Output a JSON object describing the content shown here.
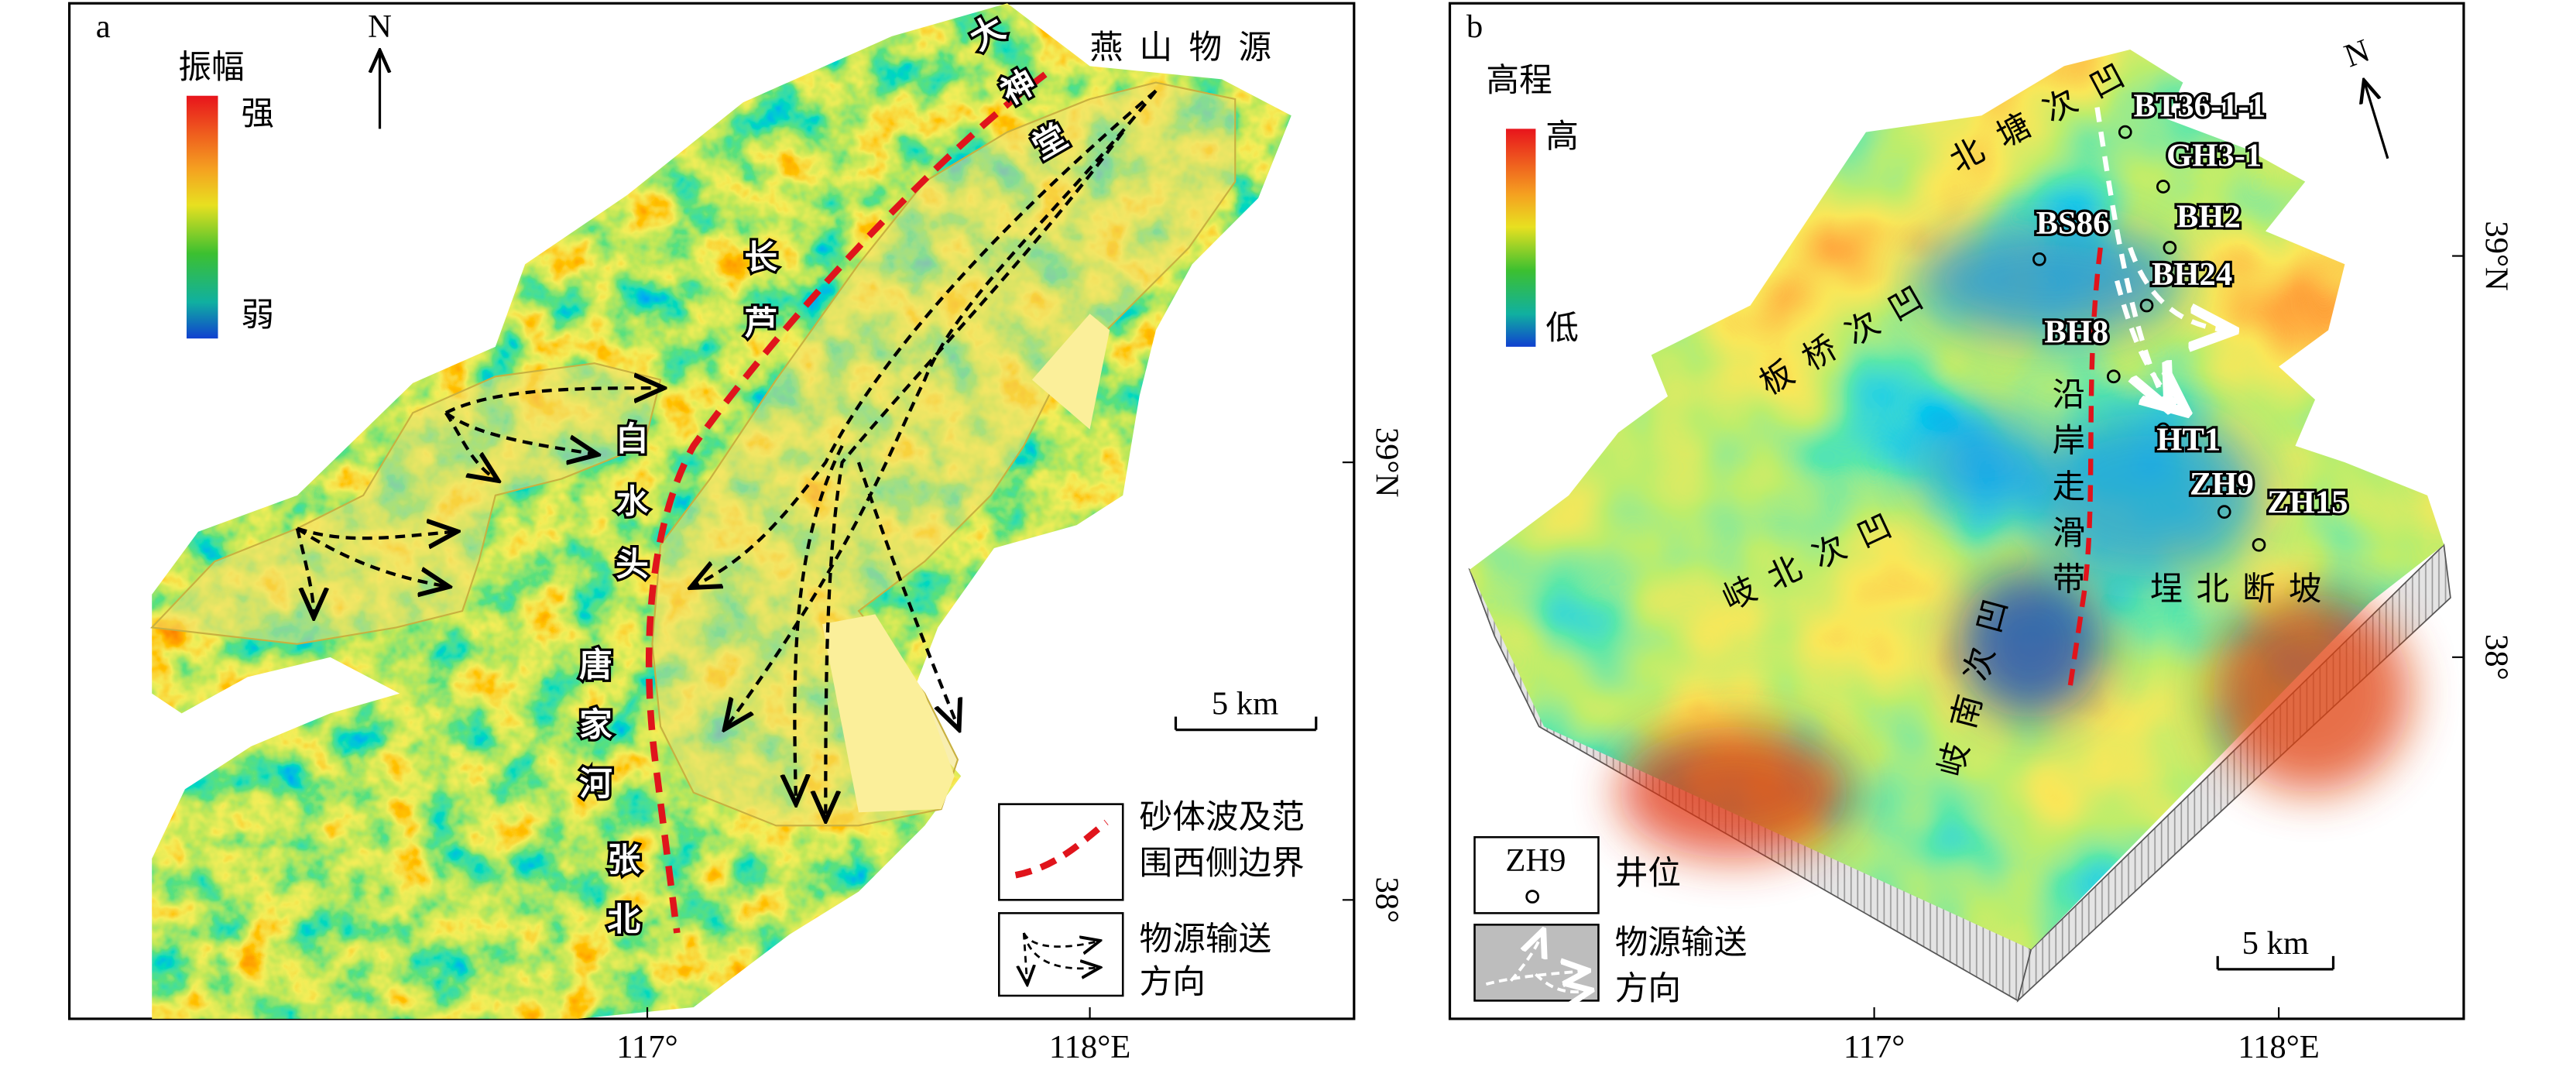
{
  "panel_a": {
    "label": "a",
    "colorbar": {
      "title": "振幅",
      "high": "强",
      "low": "弱"
    },
    "north": "N",
    "source": "燕山物源",
    "place_names": [
      "大神堂",
      "长芦",
      "白水头",
      "唐家河",
      "张北"
    ],
    "scale_bar": "5 km",
    "legend": [
      {
        "lines": [
          "砂体波及范",
          "围西侧边界"
        ]
      },
      {
        "lines": [
          "物源输送",
          "方向"
        ]
      }
    ],
    "x_labels": [
      "117°",
      "118°E"
    ],
    "y_labels": [
      "39°N",
      "38°"
    ]
  },
  "panel_b": {
    "label": "b",
    "colorbar": {
      "title": "高程",
      "high": "高",
      "low": "低"
    },
    "north": "N",
    "wells": [
      "BT36-1-1",
      "GH3-1",
      "BH2",
      "BS86",
      "BH24",
      "BH8",
      "HT1",
      "ZH9",
      "ZH15"
    ],
    "regions": [
      "北塘次凹",
      "板桥次凹",
      "岐北次凹",
      "岐南次凹",
      "沿岸走滑带",
      "埕北断坡"
    ],
    "scale_bar": "5 km",
    "legend": [
      {
        "symbol": "ZH9",
        "text": "井位"
      },
      {
        "lines": [
          "物源输送",
          "方向"
        ]
      }
    ],
    "x_labels": [
      "117°",
      "118°E"
    ],
    "y_labels": [
      "39°N",
      "38°"
    ]
  }
}
